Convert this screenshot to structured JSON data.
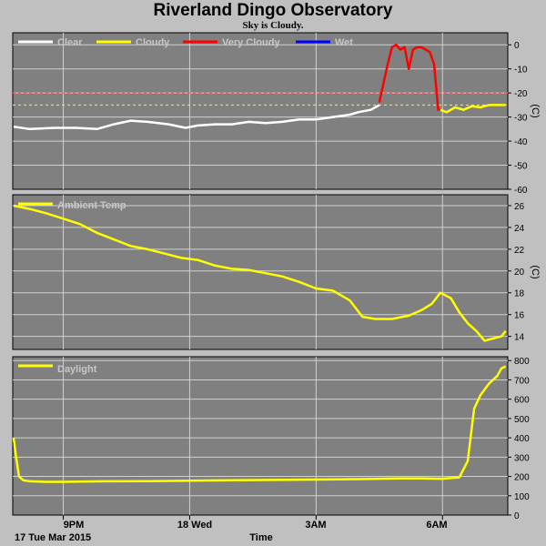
{
  "title": "Riverland Dingo Observatory",
  "subtitle": "Sky is Cloudy.",
  "date_label": "17 Tue Mar 2015",
  "x_axis_label": "Time",
  "colors": {
    "plot_bg": "#808080",
    "grid": "#d0d0d0",
    "page_bg": "#c0c0c0"
  },
  "chart_data": [
    {
      "type": "line",
      "panel": "sky",
      "unit": "(C)",
      "ylim": [
        -60,
        5
      ],
      "yticks": [
        0,
        -10,
        -20,
        -30,
        -40,
        -50,
        -60
      ],
      "xlim": [
        19.8,
        31.55
      ],
      "x_ticks": [
        21,
        24,
        27,
        30
      ],
      "x_tick_labels": [
        "9PM",
        "18 Wed",
        "3AM",
        "6AM"
      ],
      "thresholds": [
        {
          "value": -20,
          "color": "#ff5050"
        },
        {
          "value": -25,
          "color": "#ffff00"
        }
      ],
      "legend": [
        {
          "name": "Clear",
          "color": "#ffffff"
        },
        {
          "name": "Cloudy",
          "color": "#ffff00"
        },
        {
          "name": "Very Cloudy",
          "color": "#ff0000"
        },
        {
          "name": "Wet",
          "color": "#0000ff"
        }
      ],
      "series": [
        {
          "name": "Clear",
          "color": "#ffffff",
          "x": [
            19.82,
            20.2,
            20.8,
            21.3,
            21.8,
            22.2,
            22.6,
            23.0,
            23.5,
            23.9,
            24.2,
            24.6,
            25.0,
            25.4,
            25.8,
            26.2,
            26.6,
            27.0,
            27.4,
            27.8,
            28.0,
            28.3,
            28.5
          ],
          "y": [
            -34,
            -35,
            -34.5,
            -34.5,
            -35,
            -33,
            -31.5,
            -32,
            -33,
            -34.5,
            -33.5,
            -33,
            -33,
            -32,
            -32.5,
            -32,
            -31,
            -31,
            -30,
            -29,
            -28,
            -27,
            -25
          ]
        },
        {
          "name": "Very Cloudy",
          "color": "#ff0000",
          "x": [
            28.5,
            28.6,
            28.7,
            28.8,
            28.9,
            29.0,
            29.1,
            29.2,
            29.3,
            29.4,
            29.5,
            29.6,
            29.7,
            29.8,
            29.9,
            29.95
          ],
          "y": [
            -24,
            -16,
            -8,
            -1,
            0,
            -2,
            -1,
            -10,
            -2,
            -1,
            -1,
            -2,
            -3,
            -8,
            -27,
            -27
          ]
        },
        {
          "name": "Cloudy",
          "color": "#ffff00",
          "x": [
            29.95,
            30.1,
            30.3,
            30.5,
            30.7,
            30.9,
            31.1,
            31.3,
            31.5
          ],
          "y": [
            -27,
            -28,
            -26,
            -27,
            -25.5,
            -26,
            -25,
            -25,
            -25
          ]
        }
      ]
    },
    {
      "type": "line",
      "panel": "ambient",
      "unit": "(C)",
      "ylim": [
        12.8,
        27
      ],
      "yticks": [
        14,
        16,
        18,
        20,
        22,
        24,
        26
      ],
      "xlim": [
        19.8,
        31.55
      ],
      "legend": [
        {
          "name": "Ambient Temp",
          "color": "#ffff00"
        }
      ],
      "series": [
        {
          "name": "Ambient Temp",
          "color": "#ffff00",
          "x": [
            19.82,
            20.2,
            20.6,
            21.0,
            21.4,
            21.8,
            22.2,
            22.6,
            23.0,
            23.4,
            23.8,
            24.2,
            24.6,
            25.0,
            25.4,
            25.8,
            26.2,
            26.6,
            27.0,
            27.4,
            27.8,
            28.1,
            28.4,
            28.8,
            29.2,
            29.5,
            29.75,
            29.95,
            30.2,
            30.4,
            30.6,
            30.8,
            31.0,
            31.2,
            31.4,
            31.5
          ],
          "y": [
            26,
            25.7,
            25.3,
            24.8,
            24.3,
            23.5,
            22.9,
            22.3,
            22.0,
            21.6,
            21.2,
            21.0,
            20.5,
            20.2,
            20.1,
            19.8,
            19.5,
            19.0,
            18.4,
            18.2,
            17.3,
            15.8,
            15.6,
            15.6,
            15.9,
            16.4,
            17.0,
            18.0,
            17.5,
            16.2,
            15.2,
            14.5,
            13.6,
            13.8,
            14.0,
            14.5
          ]
        }
      ]
    },
    {
      "type": "line",
      "panel": "daylight",
      "unit": "",
      "ylim": [
        0,
        820
      ],
      "yticks": [
        0,
        100,
        200,
        300,
        400,
        500,
        600,
        700,
        800
      ],
      "xlim": [
        19.8,
        31.55
      ],
      "legend": [
        {
          "name": "Daylight",
          "color": "#ffff00"
        }
      ],
      "series": [
        {
          "name": "Daylight",
          "color": "#ffff00",
          "x": [
            19.82,
            19.88,
            19.95,
            20.05,
            20.2,
            20.6,
            21.0,
            22.0,
            23.0,
            24.0,
            25.0,
            26.0,
            27.0,
            28.0,
            28.5,
            29.0,
            29.5,
            30.0,
            30.4,
            30.6,
            30.75,
            30.9,
            31.1,
            31.3,
            31.4,
            31.5
          ],
          "y": [
            400,
            300,
            200,
            180,
            175,
            172,
            172,
            175,
            176,
            178,
            180,
            182,
            184,
            186,
            188,
            190,
            190,
            188,
            195,
            280,
            550,
            620,
            680,
            720,
            760,
            770
          ]
        }
      ]
    }
  ]
}
